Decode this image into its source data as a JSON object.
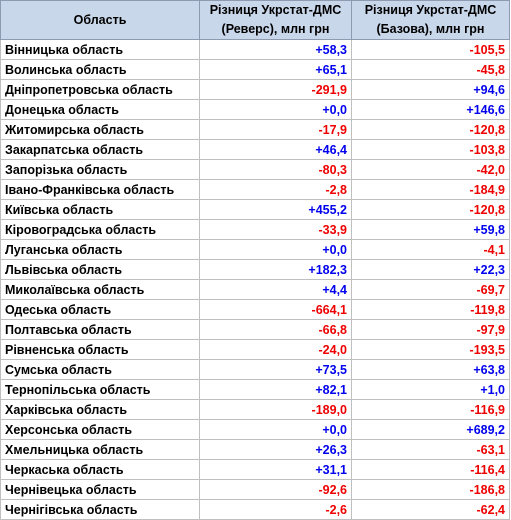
{
  "header": {
    "region": "Область",
    "reverse": "Різниця Укрстат-ДМС (Реверс), млн грн",
    "base": "Різниця Укрстат-ДМС (Базова), млн грн"
  },
  "colors": {
    "positive": "#0000ee",
    "negative": "#ee0000"
  },
  "rows": [
    {
      "region": "Вінницька область",
      "reverse": "+58,3",
      "base": "-105,5"
    },
    {
      "region": "Волинська область",
      "reverse": "+65,1",
      "base": "-45,8"
    },
    {
      "region": "Дніпропетровська область",
      "reverse": "-291,9",
      "base": "+94,6"
    },
    {
      "region": "Донецька область",
      "reverse": "+0,0",
      "base": "+146,6"
    },
    {
      "region": "Житомирська область",
      "reverse": "-17,9",
      "base": "-120,8"
    },
    {
      "region": "Закарпатська область",
      "reverse": "+46,4",
      "base": "-103,8"
    },
    {
      "region": "Запорізька область",
      "reverse": "-80,3",
      "base": "-42,0"
    },
    {
      "region": "Івано-Франківська область",
      "reverse": "-2,8",
      "base": "-184,9"
    },
    {
      "region": "Київська область",
      "reverse": "+455,2",
      "base": "-120,8"
    },
    {
      "region": "Кіровоградська область",
      "reverse": "-33,9",
      "base": "+59,8"
    },
    {
      "region": "Луганська область",
      "reverse": "+0,0",
      "base": "-4,1"
    },
    {
      "region": "Львівська область",
      "reverse": "+182,3",
      "base": "+22,3"
    },
    {
      "region": "Миколаївська область",
      "reverse": "+4,4",
      "base": "-69,7"
    },
    {
      "region": "Одеська область",
      "reverse": "-664,1",
      "base": "-119,8"
    },
    {
      "region": "Полтавська область",
      "reverse": "-66,8",
      "base": "-97,9"
    },
    {
      "region": "Рівненська область",
      "reverse": "-24,0",
      "base": "-193,5"
    },
    {
      "region": "Сумська область",
      "reverse": "+73,5",
      "base": "+63,8"
    },
    {
      "region": "Тернопільська область",
      "reverse": "+82,1",
      "base": "+1,0"
    },
    {
      "region": "Харківська область",
      "reverse": "-189,0",
      "base": "-116,9"
    },
    {
      "region": "Херсонська область",
      "reverse": "+0,0",
      "base": "+689,2"
    },
    {
      "region": "Хмельницька область",
      "reverse": "+26,3",
      "base": "-63,1"
    },
    {
      "region": "Черкаська область",
      "reverse": "+31,1",
      "base": "-116,4"
    },
    {
      "region": "Чернівецька область",
      "reverse": "-92,6",
      "base": "-186,8"
    },
    {
      "region": "Чернігівська область",
      "reverse": "-2,6",
      "base": "-62,4"
    }
  ]
}
